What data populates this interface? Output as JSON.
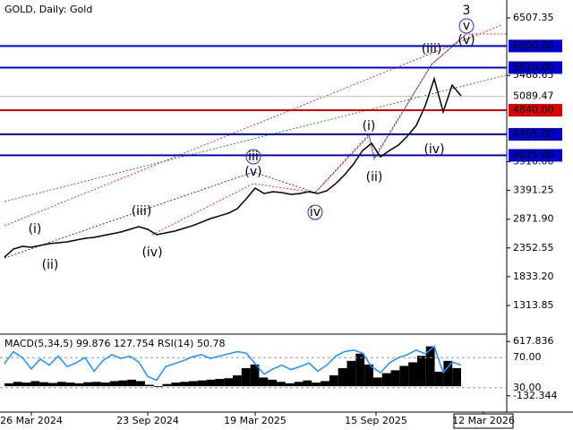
{
  "chart_data": {
    "type": "line",
    "title": "GOLD, Daily:  Gold",
    "color": "#000000",
    "values": [
      2187,
      2333,
      2381,
      2365,
      2398,
      2430,
      2446,
      2462,
      2495,
      2527,
      2543,
      2576,
      2608,
      2640,
      2689,
      2737,
      2689,
      2592,
      2624,
      2657,
      2705,
      2754,
      2818,
      2883,
      2931,
      2980,
      3061,
      3239,
      3433,
      3336,
      3368,
      3352,
      3320,
      3336,
      3368,
      3336,
      3385,
      3514,
      3676,
      3870,
      4113,
      4242,
      3999,
      4113,
      4210,
      4372,
      4566,
      4922,
      5407,
      4809,
      5294,
      5100
    ],
    "ylim": [
      812,
      6830.9
    ],
    "yticks": [
      6507.35,
      5468.65,
      {
        "value": 3910,
        "label": "3910.00"
      },
      3391.25,
      {
        "value": 2871.9,
        "label": "2871.90"
      },
      2352.55,
      {
        "value": 1833.2,
        "label": "1833.20"
      },
      1313.85
    ],
    "levels": [
      {
        "value": 6000,
        "label": "6000.00",
        "color": "#0000cc"
      },
      {
        "value": 5610,
        "label": "5610.00",
        "color": "#0000cc"
      },
      {
        "value": 4840,
        "label": "4840.00",
        "color": "#dd0000"
      },
      {
        "value": 4405,
        "label": "4405.00",
        "color": "#0000cc"
      },
      {
        "value": 4025,
        "label": "4025.00",
        "color": "#0000cc"
      }
    ],
    "current_price": 5089.47,
    "x_labels": [
      "26 Mar 2024",
      "23 Sep 2024",
      "19 Mar 2025",
      "15 Sep 2025",
      "12 Mar 2026"
    ],
    "annotations": [
      {
        "text": "3",
        "color": "#e03030",
        "style": "plain"
      },
      {
        "text": "v",
        "color": "#2030c0",
        "style": "circle"
      },
      {
        "text": "(v)",
        "color": "#e03030",
        "style": "plain"
      },
      {
        "text": "(iii)",
        "color": "#e03030",
        "style": "plain"
      },
      {
        "text": "(i)",
        "color": "#e03030",
        "style": "plain"
      },
      {
        "text": "(ii)",
        "color": "#e03030",
        "style": "plain"
      },
      {
        "text": "(iv)",
        "color": "#e03030",
        "style": "plain"
      },
      {
        "text": "(i)",
        "color": "#e03030",
        "style": "plain"
      },
      {
        "text": "(ii)",
        "color": "#e03030",
        "style": "plain"
      },
      {
        "text": "(iii)",
        "color": "#e03030",
        "style": "plain"
      },
      {
        "text": "(iv)",
        "color": "#e03030",
        "style": "plain"
      },
      {
        "text": "(v)",
        "color": "#e03030",
        "style": "plain"
      },
      {
        "text": "iii",
        "color": "#2030c0",
        "style": "circle"
      },
      {
        "text": "iv",
        "color": "#2030c0",
        "style": "circle"
      }
    ],
    "indicator": {
      "title": "MACD(5,34,5) 99.876 127.754 RSI(14) 50.78",
      "macd": {
        "color": "#000000",
        "values": [
          40,
          60,
          50,
          70,
          55,
          45,
          60,
          50,
          40,
          55,
          60,
          50,
          70,
          80,
          90,
          70,
          20,
          -10,
          30,
          50,
          60,
          70,
          80,
          90,
          100,
          110,
          150,
          250,
          300,
          120,
          90,
          60,
          40,
          60,
          80,
          50,
          70,
          150,
          250,
          350,
          450,
          300,
          120,
          180,
          220,
          280,
          330,
          420,
          550,
          200,
          350,
          250
        ],
        "ylim": [
          -332.7,
          706.8
        ],
        "yticks": [
          617.836,
          -132.344
        ]
      },
      "rsi": {
        "color": "#1e90ff",
        "values": [
          62,
          78,
          70,
          55,
          68,
          60,
          72,
          58,
          63,
          70,
          52,
          66,
          74,
          69,
          72,
          64,
          45,
          40,
          58,
          62,
          66,
          71,
          74,
          69,
          72,
          75,
          78,
          76,
          62,
          48,
          55,
          60,
          54,
          58,
          63,
          52,
          60,
          72,
          78,
          80,
          76,
          58,
          50,
          63,
          70,
          74,
          80,
          75,
          85,
          50,
          64,
          60
        ],
        "ylim": [
          0,
          100
        ],
        "yticks": [
          {
            "value": 70,
            "label": "70.00"
          },
          {
            "value": 30,
            "label": "30.00"
          }
        ]
      }
    }
  }
}
